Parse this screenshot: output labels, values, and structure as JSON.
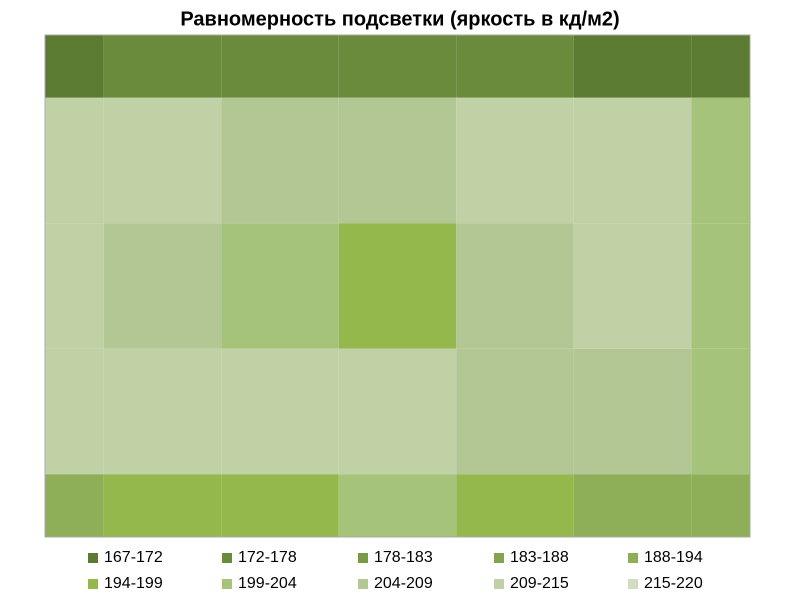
{
  "chart_data": {
    "type": "contour",
    "title": "Равномерность подсветки (яркость в кд/м2)",
    "levels": [
      167,
      172,
      178,
      183,
      188,
      194,
      199,
      204,
      209,
      215,
      220
    ],
    "series": [
      {
        "name": "167-172",
        "color": "#5b7b33"
      },
      {
        "name": "172-178",
        "color": "#6a8b3b"
      },
      {
        "name": "178-183",
        "color": "#789946"
      },
      {
        "name": "183-188",
        "color": "#84a44f"
      },
      {
        "name": "188-194",
        "color": "#8fae58"
      },
      {
        "name": "194-199",
        "color": "#95b84c"
      },
      {
        "name": "199-204",
        "color": "#a6c37a"
      },
      {
        "name": "204-209",
        "color": "#b2c793"
      },
      {
        "name": "209-215",
        "color": "#c1d1a6"
      },
      {
        "name": "215-220",
        "color": "#d2ddbf"
      }
    ],
    "z": [
      [
        170,
        172,
        175,
        174,
        172,
        170,
        168
      ],
      [
        212,
        210,
        205,
        206,
        212,
        214,
        200
      ],
      [
        213,
        208,
        200,
        195,
        205,
        210,
        200
      ],
      [
        212,
        210,
        212,
        210,
        205,
        208,
        200
      ],
      [
        192,
        195,
        198,
        200,
        196,
        190,
        190
      ]
    ]
  }
}
